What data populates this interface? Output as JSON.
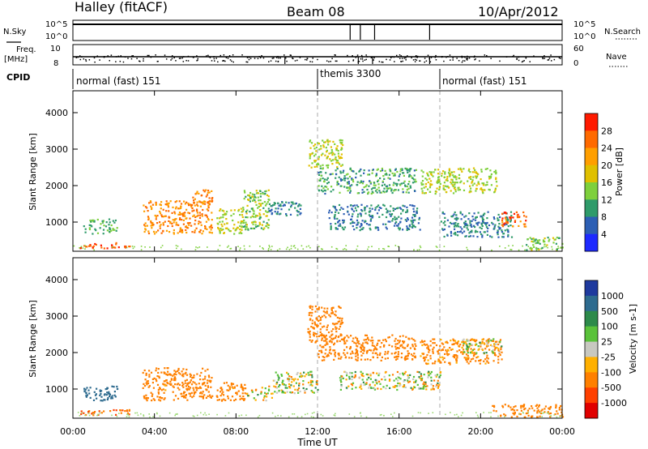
{
  "header": {
    "station": "Halley (fitACF)",
    "beam": "Beam 08",
    "date": "10/Apr/2012"
  },
  "status_panel": {
    "nsky_label": "N.Sky",
    "nsky_ticks": [
      "10^5",
      "10^0"
    ],
    "nsearch_label": "N.Search",
    "nsearch_ticks": [
      "10^5",
      "10^0"
    ],
    "freq_label": "Freq.",
    "freq_unit": "[MHz]",
    "freq_ticks": [
      "10",
      "8"
    ],
    "nave_label": "Nave",
    "nave_ticks": [
      "60",
      "0"
    ],
    "cpid_label": "CPID",
    "cpid_segments": [
      {
        "label": "normal (fast) 151",
        "start_hour": 0,
        "end_hour": 12
      },
      {
        "label": "themis 3300",
        "start_hour": 12,
        "end_hour": 18
      },
      {
        "label": "normal (fast) 151",
        "start_hour": 18,
        "end_hour": 24
      }
    ],
    "nsky_drops_hours": [
      13.6,
      14.1,
      14.8,
      17.5
    ],
    "nave_drops_hours": [
      10.4,
      14.0,
      14.7,
      17.5
    ]
  },
  "chart_data": [
    {
      "type": "heatmap",
      "panel": "power",
      "ylabel": "Slant Range [km]",
      "yticks": [
        1000,
        2000,
        3000,
        4000
      ],
      "ylim": [
        200,
        4600
      ],
      "xlim_hours": [
        0,
        24
      ],
      "colorbar_label": "Power [dB]",
      "colorbar_ticks": [
        "28",
        "24",
        "20",
        "16",
        "12",
        "8",
        "4"
      ],
      "colorbar_colors": [
        "#ff1a00",
        "#ff6a00",
        "#ff9f00",
        "#e0c000",
        "#7ed03c",
        "#2f9b6a",
        "#2d5fb4",
        "#1e2aff"
      ],
      "scatter_regions": [
        {
          "hours": [
            0.3,
            2.8
          ],
          "range_km": [
            300,
            450
          ],
          "level": 26
        },
        {
          "hours": [
            0.5,
            2.2
          ],
          "range_km": [
            700,
            1100
          ],
          "level": 10
        },
        {
          "hours": [
            3.4,
            6.8
          ],
          "range_km": [
            700,
            1600
          ],
          "level": 22
        },
        {
          "hours": [
            5.8,
            6.8
          ],
          "range_km": [
            1500,
            1900
          ],
          "level": 22
        },
        {
          "hours": [
            7.0,
            8.3
          ],
          "range_km": [
            700,
            1400
          ],
          "level": 14
        },
        {
          "hours": [
            8.3,
            9.6
          ],
          "range_km": [
            800,
            1900
          ],
          "level": 12
        },
        {
          "hours": [
            9.6,
            11.2
          ],
          "range_km": [
            1200,
            1600
          ],
          "level": 6
        },
        {
          "hours": [
            11.5,
            13.2
          ],
          "range_km": [
            2500,
            3300
          ],
          "level": 14
        },
        {
          "hours": [
            12.0,
            16.8
          ],
          "range_km": [
            1800,
            2500
          ],
          "level": 9
        },
        {
          "hours": [
            12.5,
            17.0
          ],
          "range_km": [
            800,
            1500
          ],
          "level": 6
        },
        {
          "hours": [
            17.0,
            20.8
          ],
          "range_km": [
            1800,
            2500
          ],
          "level": 14
        },
        {
          "hours": [
            18.0,
            21.5
          ],
          "range_km": [
            600,
            1300
          ],
          "level": 6
        },
        {
          "hours": [
            21.0,
            22.2
          ],
          "range_km": [
            900,
            1300
          ],
          "level": 24
        },
        {
          "hours": [
            22.2,
            24.0
          ],
          "range_km": [
            250,
            600
          ],
          "level": 12
        }
      ]
    },
    {
      "type": "heatmap",
      "panel": "velocity",
      "ylabel": "Slant Range [km]",
      "yticks": [
        1000,
        2000,
        3000,
        4000
      ],
      "ylim": [
        200,
        4600
      ],
      "xlim_hours": [
        0,
        24
      ],
      "xticks": [
        "00:00",
        "04:00",
        "08:00",
        "12:00",
        "16:00",
        "20:00",
        "00:00"
      ],
      "xlabel": "Time UT",
      "colorbar_label": "Velocity [m s-1]",
      "colorbar_ticks": [
        "1000",
        "500",
        "100",
        "25",
        "-25",
        "-100",
        "-500",
        "-1000"
      ],
      "colorbar_colors": [
        "#1f3a9e",
        "#2e6b8f",
        "#2d8a4a",
        "#5ac23a",
        "#c8c8c0",
        "#ffb000",
        "#ff8000",
        "#ff4000",
        "#e00000"
      ],
      "scatter_regions": [
        {
          "hours": [
            0.3,
            2.8
          ],
          "range_km": [
            300,
            450
          ],
          "level": -300
        },
        {
          "hours": [
            0.5,
            2.2
          ],
          "range_km": [
            700,
            1100
          ],
          "level": 400
        },
        {
          "hours": [
            3.4,
            6.8
          ],
          "range_km": [
            700,
            1600
          ],
          "level": -150
        },
        {
          "hours": [
            7.0,
            8.5
          ],
          "range_km": [
            700,
            1200
          ],
          "level": -150
        },
        {
          "hours": [
            8.5,
            9.8
          ],
          "range_km": [
            700,
            1100
          ],
          "level": 0
        },
        {
          "hours": [
            9.8,
            12.0
          ],
          "range_km": [
            900,
            1500
          ],
          "level": 0
        },
        {
          "hours": [
            11.5,
            13.2
          ],
          "range_km": [
            2300,
            3300
          ],
          "level": -150
        },
        {
          "hours": [
            12.0,
            16.8
          ],
          "range_km": [
            1800,
            2500
          ],
          "level": -200
        },
        {
          "hours": [
            13.0,
            18.0
          ],
          "range_km": [
            1000,
            1500
          ],
          "level": 0
        },
        {
          "hours": [
            17.0,
            21.0
          ],
          "range_km": [
            1700,
            2400
          ],
          "level": -120
        },
        {
          "hours": [
            19.0,
            21.0
          ],
          "range_km": [
            2000,
            2400
          ],
          "level": 0
        },
        {
          "hours": [
            20.5,
            24.0
          ],
          "range_km": [
            250,
            600
          ],
          "level": -200
        }
      ]
    }
  ]
}
